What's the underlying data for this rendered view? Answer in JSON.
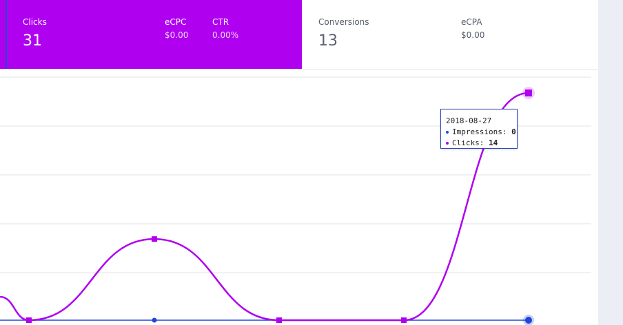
{
  "stats": {
    "clicks": {
      "label": "Clicks",
      "value": "31"
    },
    "ecpc": {
      "label": "eCPC",
      "value": "$0.00"
    },
    "ctr": {
      "label": "CTR",
      "value": "0.00%"
    },
    "conversions": {
      "label": "Conversions",
      "value": "13"
    },
    "ecpa": {
      "label": "eCPA",
      "value": "$0.00"
    }
  },
  "tooltip": {
    "date": "2018-08-27",
    "impressions_label": "Impressions:",
    "impressions_value": "0",
    "clicks_label": "Clicks:",
    "clicks_value": "14"
  },
  "colors": {
    "accent": "#b000f0",
    "impressions": "#2045d8",
    "clicks": "#b000f0",
    "grid": "#e3e3ea"
  },
  "chart_data": {
    "type": "line",
    "series": [
      {
        "name": "Impressions",
        "values": [
          0,
          0,
          0,
          0,
          0
        ]
      },
      {
        "name": "Clicks",
        "values": [
          0,
          5,
          0,
          0,
          14
        ]
      }
    ],
    "highlight": {
      "date": "2018-08-27",
      "index": 4
    }
  }
}
